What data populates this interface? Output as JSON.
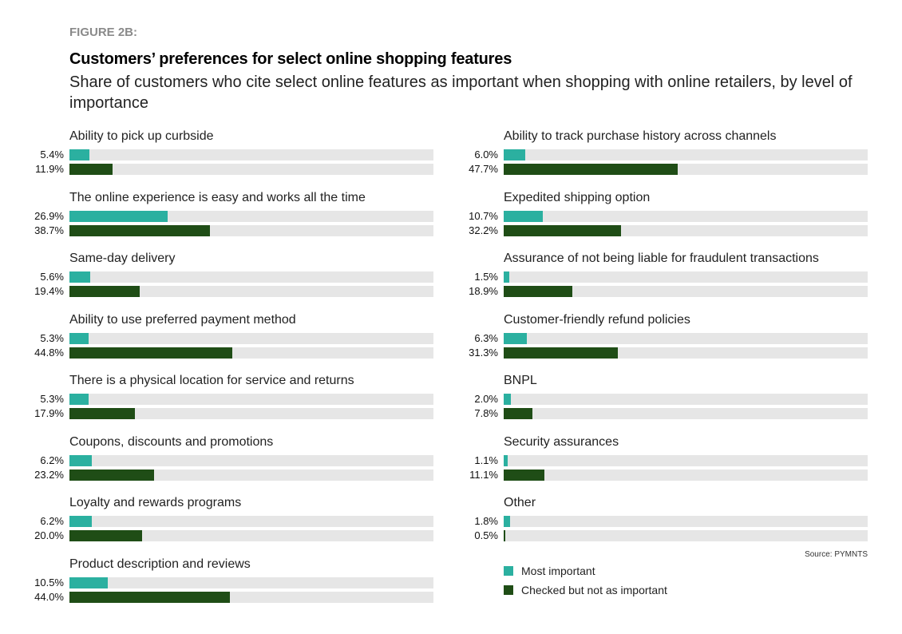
{
  "chart_data": {
    "type": "bar",
    "orientation": "horizontal",
    "figure_label": "FIGURE 2B:",
    "title": "Customers’ preferences for select online shopping features",
    "subtitle": "Share of customers who cite select online features as important when shopping with online retailers, by level of importance",
    "xlim": [
      0,
      100
    ],
    "unit": "%",
    "grid": false,
    "legend_placement": "bottom-right",
    "colors": {
      "most": "#2bb0a0",
      "checked": "#1f4d16",
      "track": "#e6e6e6"
    },
    "series": [
      {
        "name": "Most important",
        "color": "#2bb0a0"
      },
      {
        "name": "Checked but not as important",
        "color": "#1f4d16"
      }
    ],
    "categories": [
      {
        "label": "Ability to pick up curbside",
        "values": [
          5.4,
          11.9
        ]
      },
      {
        "label": "The online experience is easy and works all the time",
        "values": [
          26.9,
          38.7
        ]
      },
      {
        "label": "Same-day delivery",
        "values": [
          5.6,
          19.4
        ]
      },
      {
        "label": "Ability to use preferred payment method",
        "values": [
          5.3,
          44.8
        ]
      },
      {
        "label": "There is a physical location for service and returns",
        "values": [
          5.3,
          17.9
        ]
      },
      {
        "label": "Coupons, discounts and promotions",
        "values": [
          6.2,
          23.2
        ]
      },
      {
        "label": "Loyalty and rewards programs",
        "values": [
          6.2,
          20.0
        ]
      },
      {
        "label": "Product description and reviews",
        "values": [
          10.5,
          44.0
        ]
      },
      {
        "label": "Ability to track purchase history across channels",
        "values": [
          6.0,
          47.7
        ]
      },
      {
        "label": "Expedited shipping option",
        "values": [
          10.7,
          32.2
        ]
      },
      {
        "label": "Assurance of not being liable for fraudulent transactions",
        "values": [
          1.5,
          18.9
        ]
      },
      {
        "label": "Customer-friendly refund policies",
        "values": [
          6.3,
          31.3
        ]
      },
      {
        "label": "BNPL",
        "values": [
          2.0,
          7.8
        ]
      },
      {
        "label": "Security assurances",
        "values": [
          1.1,
          11.1
        ]
      },
      {
        "label": "Other",
        "values": [
          1.8,
          0.5
        ]
      }
    ],
    "source": "Source: PYMNTS"
  }
}
